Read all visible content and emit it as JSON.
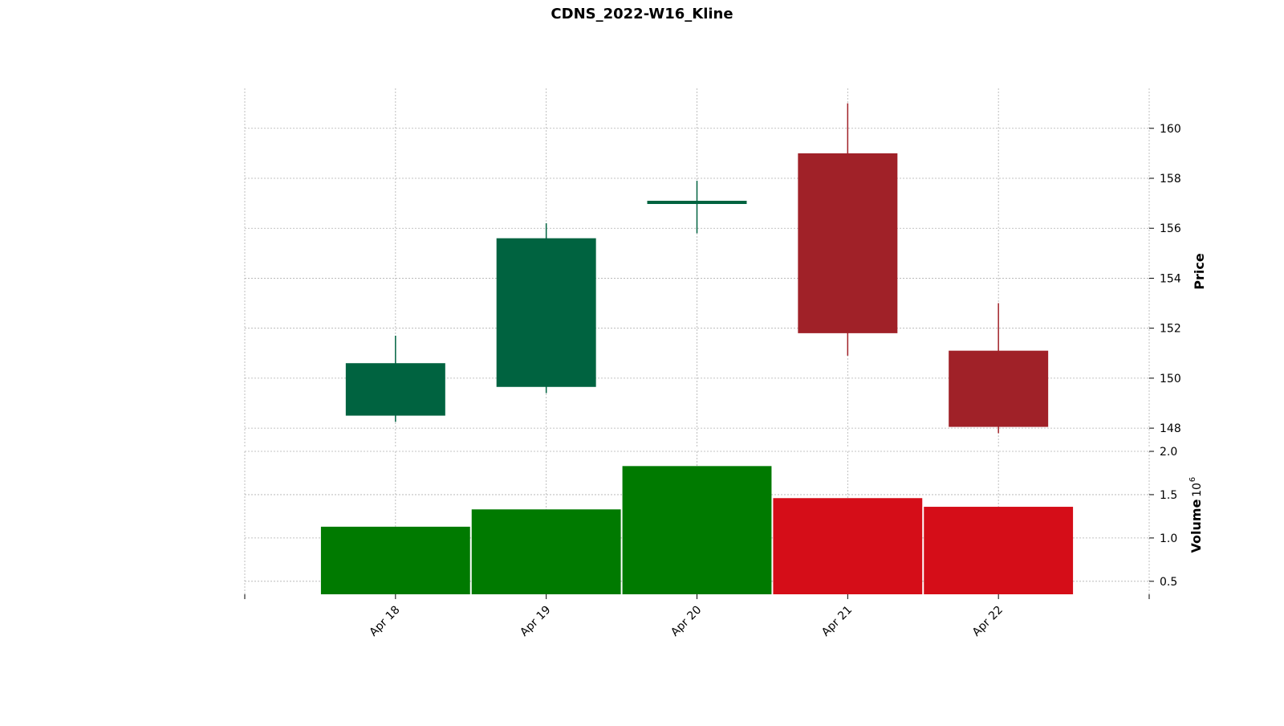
{
  "chart_data": {
    "type": "candlestick",
    "title": "CDNS_2022-W16_Kline",
    "categories": [
      "Apr 18",
      "Apr 19",
      "Apr 20",
      "Apr 21",
      "Apr 22"
    ],
    "ohlc": [
      {
        "date": "Apr 18",
        "open": 148.5,
        "high": 151.7,
        "low": 148.25,
        "close": 150.6
      },
      {
        "date": "Apr 19",
        "open": 149.65,
        "high": 156.2,
        "low": 149.4,
        "close": 155.6
      },
      {
        "date": "Apr 20",
        "open": 157.0,
        "high": 157.9,
        "low": 155.8,
        "close": 157.1
      },
      {
        "date": "Apr 21",
        "open": 159.0,
        "high": 161.0,
        "low": 150.9,
        "close": 151.8
      },
      {
        "date": "Apr 22",
        "open": 151.1,
        "high": 153.0,
        "low": 147.8,
        "close": 148.05
      }
    ],
    "volume": [
      1.13,
      1.33,
      1.83,
      1.46,
      1.36
    ],
    "price_axis": {
      "label": "Price",
      "ticks": [
        148,
        150,
        152,
        154,
        156,
        158,
        160
      ],
      "ylim": [
        147.2,
        161.6
      ],
      "position": "right"
    },
    "volume_axis": {
      "label": "Volume",
      "multiplier_label": "10",
      "multiplier_exponent": "6",
      "ticks": [
        "0.5",
        "1.0",
        "1.5",
        "2.0"
      ],
      "ylim": [
        0.35,
        2.0
      ],
      "position": "right"
    },
    "grid": true,
    "colors": {
      "up_candle": "#006340",
      "down_candle": "#a02128",
      "up_volume": "#007a00",
      "down_volume": "#d50d18",
      "grid": "#b0b0b0"
    }
  }
}
